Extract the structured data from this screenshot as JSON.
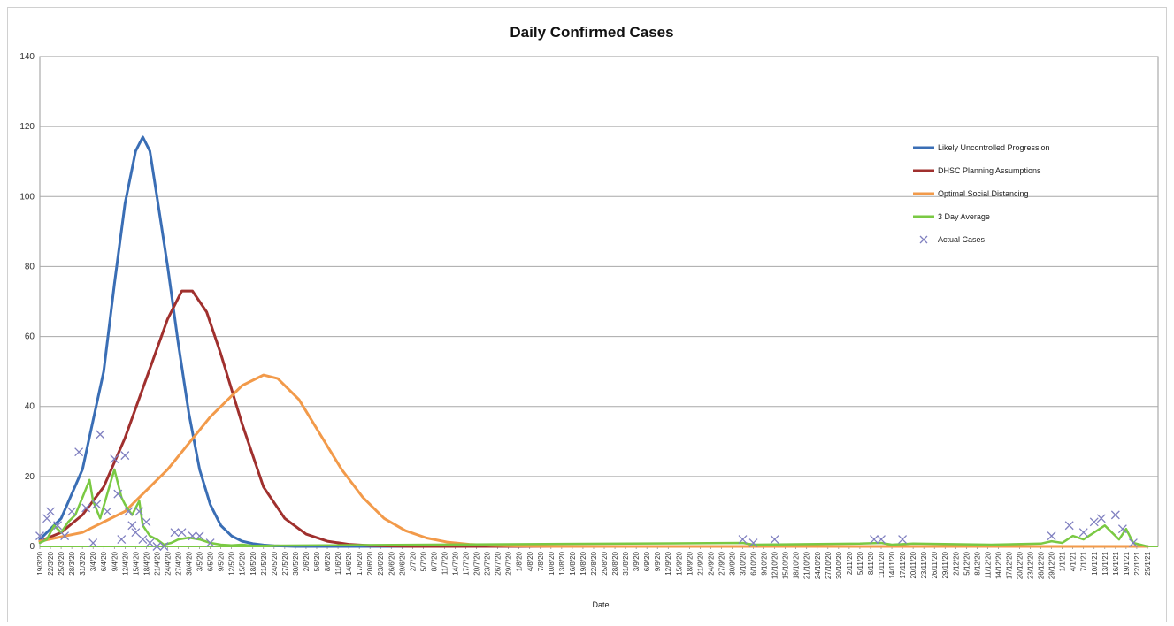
{
  "chart_data": {
    "type": "line",
    "title": "Daily Confirmed Cases",
    "xlabel": "Date",
    "ylabel": "",
    "ylim": [
      0,
      140
    ],
    "yticks": [
      0,
      20,
      40,
      60,
      80,
      100,
      120,
      140
    ],
    "grid": "horizontal",
    "legend_position": "right",
    "x_range": [
      "19/3/20",
      "28/1/21"
    ],
    "x_tick_labels": [
      "19/3/20",
      "22/3/20",
      "25/3/20",
      "28/3/20",
      "31/3/20",
      "3/4/20",
      "6/4/20",
      "9/4/20",
      "12/4/20",
      "15/4/20",
      "18/4/20",
      "21/4/20",
      "24/4/20",
      "27/4/20",
      "30/4/20",
      "3/5/20",
      "6/5/20",
      "9/5/20",
      "12/5/20",
      "15/5/20",
      "18/5/20",
      "21/5/20",
      "24/5/20",
      "27/5/20",
      "30/5/20",
      "2/6/20",
      "5/6/20",
      "8/6/20",
      "11/6/20",
      "14/6/20",
      "17/6/20",
      "20/6/20",
      "23/6/20",
      "26/6/20",
      "29/6/20",
      "2/7/20",
      "5/7/20",
      "8/7/20",
      "11/7/20",
      "14/7/20",
      "17/7/20",
      "20/7/20",
      "23/7/20",
      "26/7/20",
      "29/7/20",
      "1/8/20",
      "4/8/20",
      "7/8/20",
      "10/8/20",
      "13/8/20",
      "16/8/20",
      "19/8/20",
      "22/8/20",
      "25/8/20",
      "28/8/20",
      "31/8/20",
      "3/9/20",
      "6/9/20",
      "9/9/20",
      "12/9/20",
      "15/9/20",
      "18/9/20",
      "21/9/20",
      "24/9/20",
      "27/9/20",
      "30/9/20",
      "3/10/20",
      "6/10/20",
      "9/10/20",
      "12/10/20",
      "15/10/20",
      "18/10/20",
      "21/10/20",
      "24/10/20",
      "27/10/20",
      "30/10/20",
      "2/11/20",
      "5/11/20",
      "8/11/20",
      "11/11/20",
      "14/11/20",
      "17/11/20",
      "20/11/20",
      "23/11/20",
      "26/11/20",
      "29/11/20",
      "2/12/20",
      "5/12/20",
      "8/12/20",
      "11/12/20",
      "14/12/20",
      "17/12/20",
      "20/12/20",
      "23/12/20",
      "26/12/20",
      "29/12/20",
      "1/1/21",
      "4/1/21",
      "7/1/21",
      "10/1/21",
      "13/1/21",
      "16/1/21",
      "19/1/21",
      "22/1/21",
      "25/1/21"
    ],
    "series": [
      {
        "name": "Likely Uncontrolled Progression",
        "kind": "line",
        "color": "#3a6eb5",
        "x": [
          "19/3/20",
          "25/3/20",
          "31/3/20",
          "6/4/20",
          "9/4/20",
          "12/4/20",
          "15/4/20",
          "17/4/20",
          "19/4/20",
          "21/4/20",
          "24/4/20",
          "27/4/20",
          "30/4/20",
          "3/5/20",
          "6/5/20",
          "9/5/20",
          "12/5/20",
          "15/5/20",
          "18/5/20",
          "21/5/20",
          "24/5/20",
          "27/5/20",
          "30/5/20",
          "25/1/21"
        ],
        "y": [
          2,
          8,
          22,
          50,
          75,
          98,
          113,
          117,
          113,
          100,
          80,
          58,
          38,
          22,
          12,
          6,
          3,
          1.5,
          0.8,
          0.4,
          0.2,
          0.1,
          0,
          0
        ]
      },
      {
        "name": "DHSC Planning Assumptions",
        "kind": "line",
        "color": "#a0302e",
        "x": [
          "19/3/20",
          "25/3/20",
          "31/3/20",
          "6/4/20",
          "12/4/20",
          "18/4/20",
          "24/4/20",
          "28/4/20",
          "1/5/20",
          "5/5/20",
          "9/5/20",
          "15/5/20",
          "21/5/20",
          "27/5/20",
          "2/6/20",
          "8/6/20",
          "14/6/20",
          "20/6/20",
          "26/6/20",
          "2/7/20",
          "25/1/21"
        ],
        "y": [
          1.5,
          4,
          9,
          17,
          31,
          48,
          65,
          73,
          73,
          67,
          55,
          35,
          17,
          8,
          3.5,
          1.5,
          0.6,
          0.25,
          0.1,
          0,
          0
        ]
      },
      {
        "name": "Optimal Social Distancing",
        "kind": "line",
        "color": "#f29a4a",
        "x": [
          "19/3/20",
          "31/3/20",
          "12/4/20",
          "24/4/20",
          "6/5/20",
          "15/5/20",
          "21/5/20",
          "25/5/20",
          "31/5/20",
          "6/6/20",
          "12/6/20",
          "18/6/20",
          "24/6/20",
          "30/6/20",
          "6/7/20",
          "12/7/20",
          "18/7/20",
          "24/7/20",
          "30/7/20",
          "5/8/20",
          "11/8/20",
          "25/1/21"
        ],
        "y": [
          1.5,
          4,
          10,
          22,
          37,
          46,
          49,
          48,
          42,
          32,
          22,
          14,
          8,
          4.5,
          2.4,
          1.2,
          0.6,
          0.3,
          0.15,
          0.07,
          0,
          0
        ]
      },
      {
        "name": "3 Day Average",
        "kind": "line",
        "color": "#7ac943",
        "x": [
          "19/3/20",
          "21/3/20",
          "23/3/20",
          "25/3/20",
          "27/3/20",
          "29/3/20",
          "31/3/20",
          "2/4/20",
          "3/4/20",
          "5/4/20",
          "7/4/20",
          "9/4/20",
          "11/4/20",
          "12/4/20",
          "14/4/20",
          "16/4/20",
          "17/4/20",
          "19/4/20",
          "21/4/20",
          "23/4/20",
          "25/4/20",
          "27/4/20",
          "30/4/20",
          "3/5/20",
          "6/5/20",
          "9/5/20",
          "12/5/20",
          "15/5/20",
          "18/5/20",
          "3/10/20",
          "6/10/20",
          "5/11/20",
          "11/11/20",
          "14/11/20",
          "20/11/20",
          "12/12/20",
          "26/12/20",
          "29/12/20",
          "1/1/21",
          "4/1/21",
          "7/1/21",
          "10/1/21",
          "13/1/21",
          "15/1/21",
          "17/1/21",
          "19/1/21",
          "21/1/21",
          "25/1/21"
        ],
        "y": [
          1,
          2,
          6,
          4,
          7,
          9,
          14,
          19,
          13,
          8,
          15,
          22,
          14,
          12,
          9,
          13,
          6,
          3,
          2,
          0.5,
          1,
          2,
          2.5,
          2,
          1,
          0.5,
          0.3,
          0.5,
          0.2,
          1,
          0.5,
          0.8,
          1,
          0.5,
          0.8,
          0.5,
          0.8,
          1.5,
          1,
          3,
          2,
          4,
          6,
          4,
          2,
          5,
          1,
          0
        ]
      },
      {
        "name": "Actual Cases",
        "kind": "scatter",
        "color": "#8080c0",
        "marker": "x",
        "x": [
          "19/3/20",
          "21/3/20",
          "22/3/20",
          "24/3/20",
          "26/3/20",
          "28/3/20",
          "30/3/20",
          "1/4/20",
          "3/4/20",
          "4/4/20",
          "5/4/20",
          "7/4/20",
          "9/4/20",
          "10/4/20",
          "11/4/20",
          "12/4/20",
          "13/4/20",
          "14/4/20",
          "15/4/20",
          "16/4/20",
          "17/4/20",
          "18/4/20",
          "19/4/20",
          "21/4/20",
          "23/4/20",
          "26/4/20",
          "28/4/20",
          "1/5/20",
          "3/5/20",
          "6/5/20",
          "3/10/20",
          "6/10/20",
          "12/10/20",
          "9/11/20",
          "11/11/20",
          "17/11/20",
          "29/12/20",
          "3/1/21",
          "7/1/21",
          "10/1/21",
          "12/1/21",
          "16/1/21",
          "18/1/21",
          "21/1/21"
        ],
        "y": [
          3,
          8,
          10,
          6,
          3,
          10,
          27,
          11,
          1,
          12,
          32,
          10,
          25,
          15,
          2,
          26,
          10,
          6,
          4,
          10,
          2,
          7,
          1,
          0,
          0,
          4,
          4,
          3,
          3,
          1,
          2,
          1,
          2,
          2,
          2,
          2,
          3,
          6,
          4,
          7,
          8,
          9,
          5,
          1
        ]
      }
    ]
  }
}
